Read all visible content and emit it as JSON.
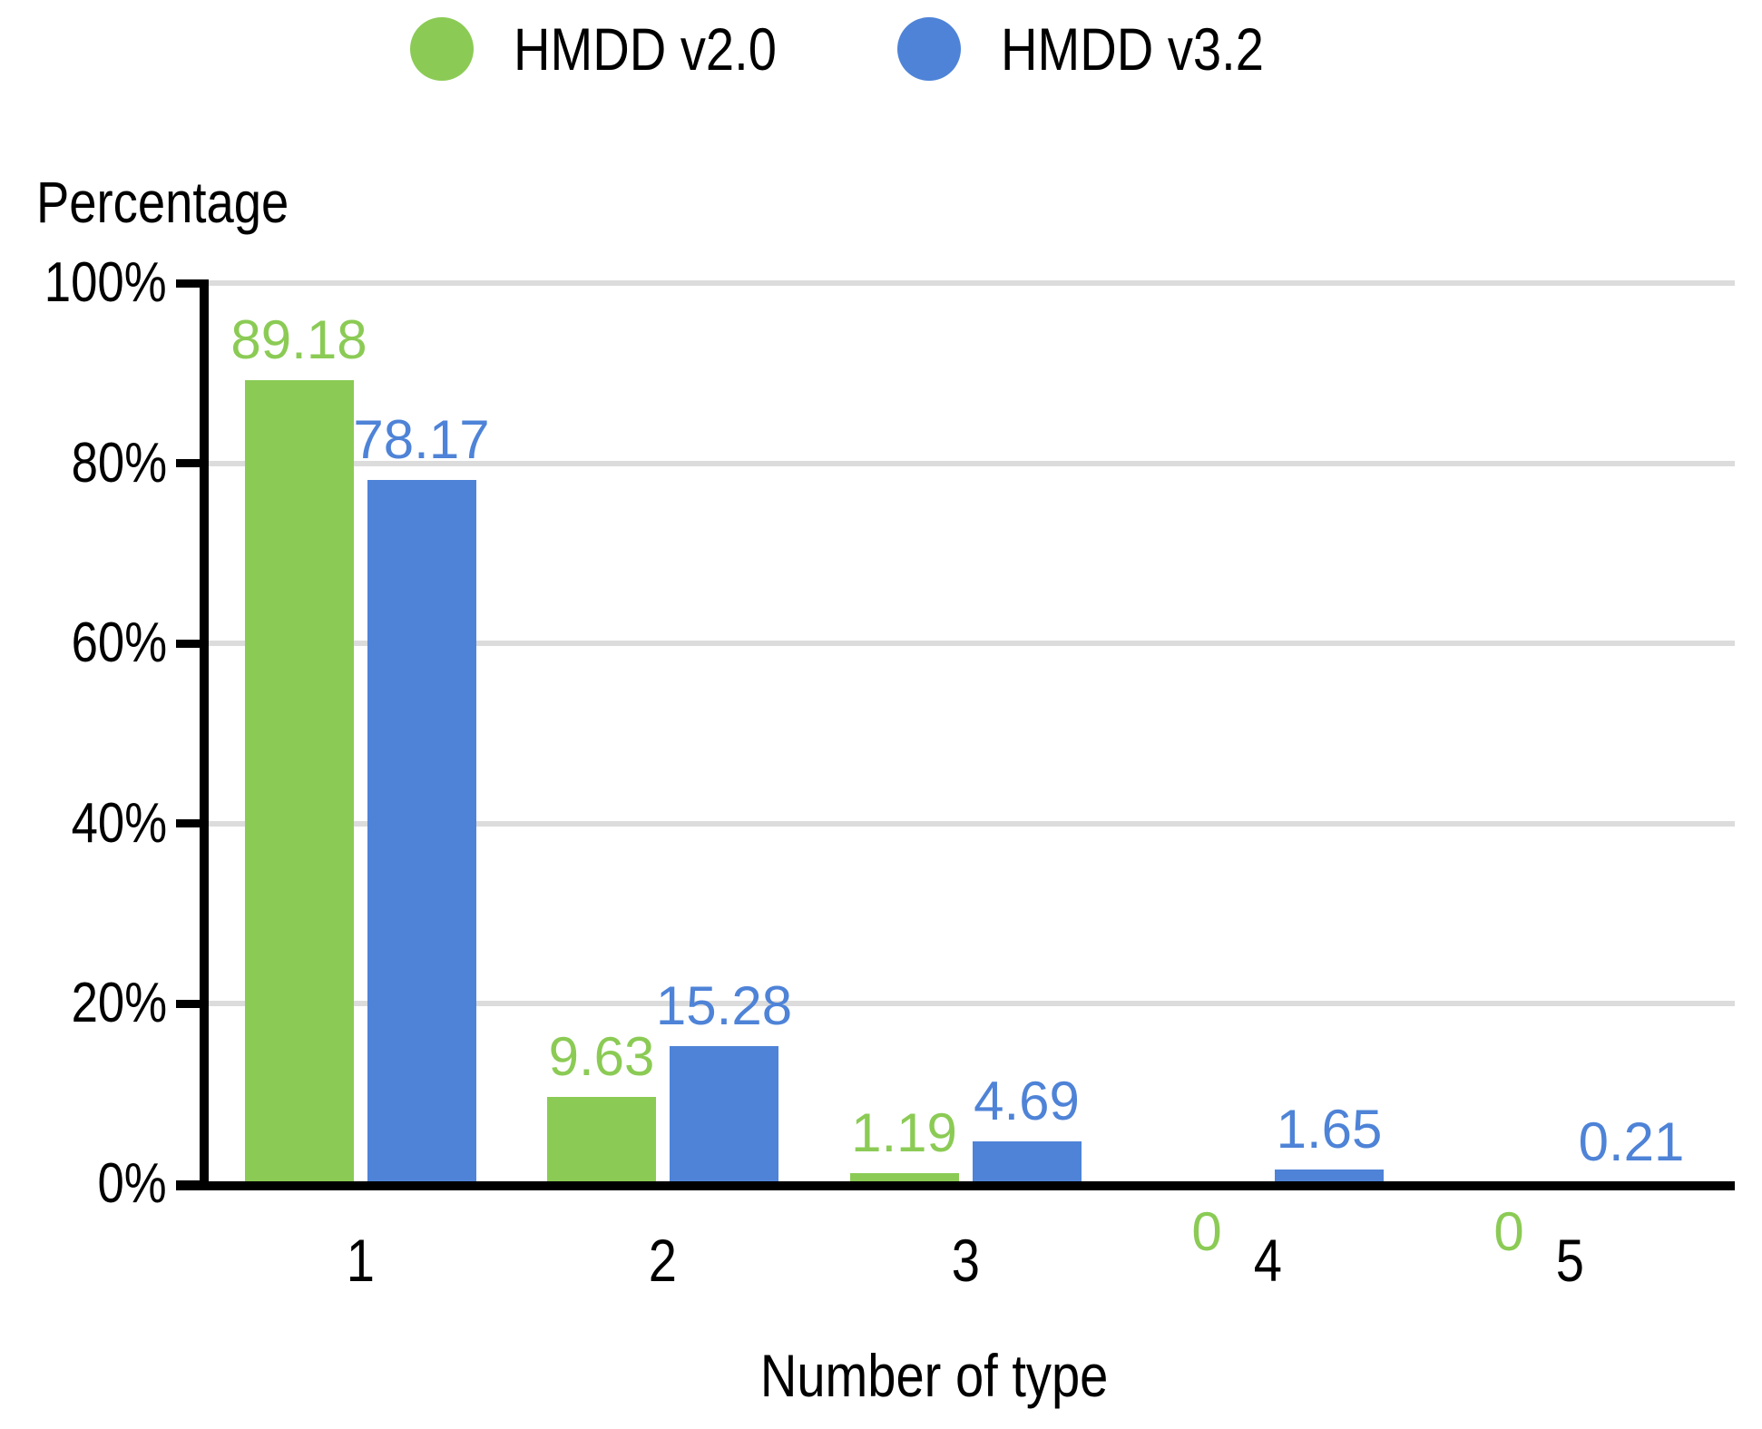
{
  "legend": {
    "items": [
      {
        "label": "HMDD v2.0",
        "color": "#8bcb55",
        "icon": "circle"
      },
      {
        "label": "HMDD v3.2",
        "color": "#4e83d7",
        "icon": "circle"
      }
    ]
  },
  "chart_data": {
    "type": "bar",
    "title": "",
    "ylabel": "Percentage",
    "xlabel": "Number of type",
    "categories": [
      "1",
      "2",
      "3",
      "4",
      "5"
    ],
    "series": [
      {
        "name": "HMDD v2.0",
        "color": "#8bcb55",
        "values": [
          89.18,
          9.63,
          1.19,
          0,
          0
        ],
        "value_labels": [
          "89.18",
          "9.63",
          "1.19",
          "0",
          "0"
        ]
      },
      {
        "name": "HMDD v3.2",
        "color": "#4e83d7",
        "values": [
          78.17,
          15.28,
          4.69,
          1.65,
          0.21
        ],
        "value_labels": [
          "78.17",
          "15.28",
          "4.69",
          "1.65",
          "0.21"
        ]
      }
    ],
    "ylim": [
      0,
      100
    ],
    "y_ticks": [
      {
        "label": "0%",
        "value": 0
      },
      {
        "label": "20%",
        "value": 20
      },
      {
        "label": "40%",
        "value": 40
      },
      {
        "label": "60%",
        "value": 60
      },
      {
        "label": "80%",
        "value": 80
      },
      {
        "label": "100%",
        "value": 100
      }
    ],
    "grid": true,
    "gridline_color": "#dcdcdc",
    "axis_color": "#000000",
    "legend_position": "top",
    "value_label_placement": "above bars; zero values labeled below axis"
  }
}
